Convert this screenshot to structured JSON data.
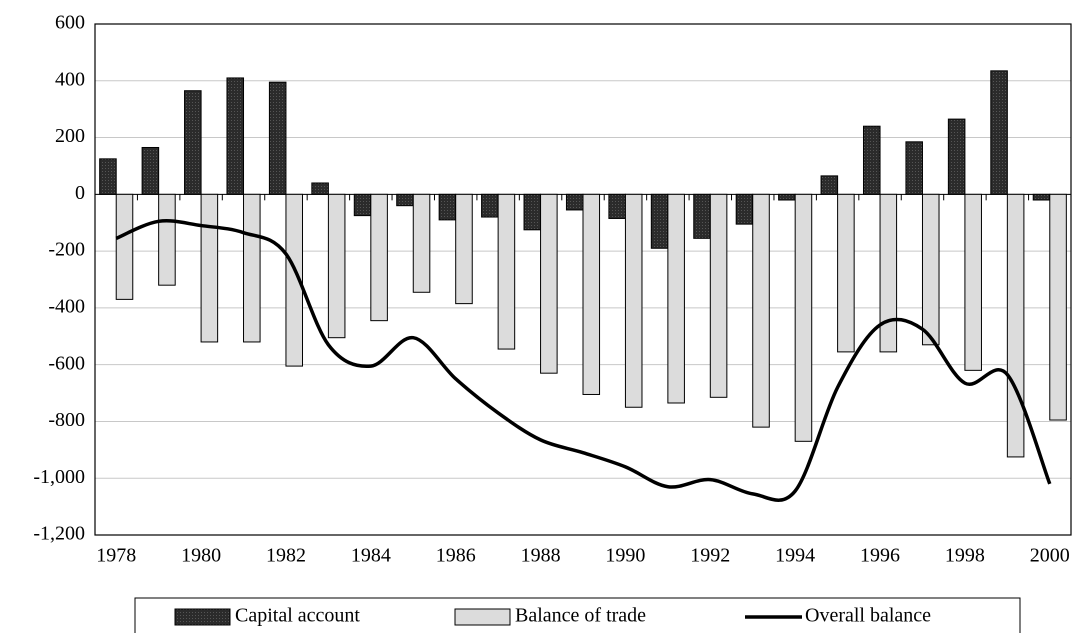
{
  "chart_data": {
    "type": "bar-line",
    "categories": [
      "1978",
      null,
      "1980",
      null,
      "1982",
      null,
      "1984",
      null,
      "1986",
      null,
      "1988",
      null,
      "1990",
      null,
      "1992",
      null,
      "1994",
      null,
      "1996",
      null,
      "1998",
      null,
      "2000"
    ],
    "series": [
      {
        "name": "Capital account",
        "color": "#2b2b2b",
        "kind": "bar",
        "values": [
          125,
          165,
          365,
          410,
          395,
          40,
          -75,
          -40,
          -90,
          -80,
          -125,
          -55,
          -85,
          -190,
          -155,
          -105,
          -20,
          65,
          240,
          185,
          265,
          435,
          -20
        ]
      },
      {
        "name": "Balance of trade",
        "color": "#dcdcdc",
        "kind": "bar",
        "values": [
          -370,
          -320,
          -520,
          -520,
          -605,
          -505,
          -445,
          -345,
          -385,
          -545,
          -630,
          -705,
          -750,
          -735,
          -715,
          -820,
          -870,
          -555,
          -555,
          -530,
          -620,
          -925,
          -795
        ]
      },
      {
        "name": "Overall balance",
        "color": "#000000",
        "kind": "line",
        "values": [
          -155,
          -95,
          -110,
          -135,
          -210,
          -530,
          -605,
          -505,
          -650,
          -770,
          -865,
          -910,
          -960,
          -1030,
          -1005,
          -1055,
          -1045,
          -680,
          -460,
          -475,
          -665,
          -635,
          -1020
        ]
      }
    ],
    "ylim": [
      -1200,
      600
    ],
    "yticks": [
      {
        "value": -1200,
        "label": "-1,200"
      },
      {
        "value": -1000,
        "label": "-1,000"
      },
      -800,
      -600,
      -400,
      -200,
      0,
      200,
      400,
      600
    ],
    "grid": true,
    "legend": "bottom"
  }
}
